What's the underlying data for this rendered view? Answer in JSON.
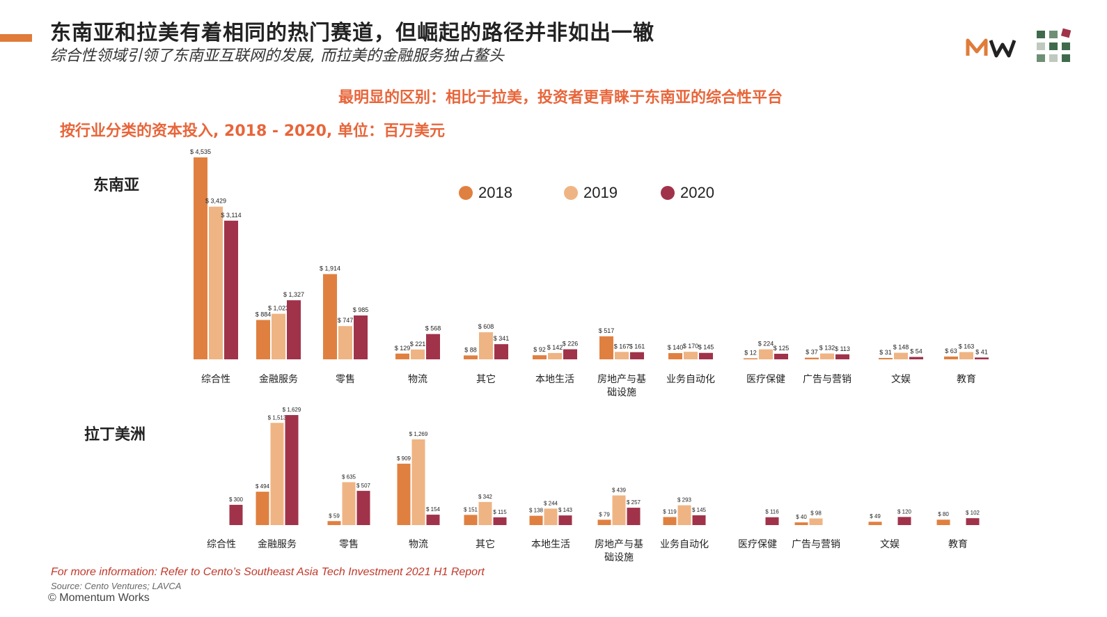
{
  "header": {
    "title": "东南亚和拉美有着相同的热门赛道，但崛起的路径并非如出一辙",
    "subtitle": "综合性领域引领了东南亚互联网的发展, 而拉美的金融服务独占鳌头",
    "headline": "最明显的区别：相比于拉美，投资者更青睐于东南亚的综合性平台"
  },
  "footer": {
    "note": "For more information: Refer to Cento’s Southeast Asia Tech Investment 2021 H1 Report",
    "source": "Source: Cento Ventures; LAVCA",
    "copyright": "© Momentum Works"
  },
  "colors": {
    "accent": "#e07b39",
    "c2018": "#e08040",
    "c2019": "#efb483",
    "c2020": "#a0334a",
    "headline": "#e8653a"
  },
  "chart_data": [
    {
      "type": "bar",
      "title": "按行业分类的资本投入, 2018 - 2020, 单位：百万美元",
      "region": "东南亚",
      "value_prefix": "$ ",
      "categories": [
        [
          "综合性"
        ],
        [
          "金融服务"
        ],
        [
          "零售"
        ],
        [
          "物流"
        ],
        [
          "其它"
        ],
        [
          "本地生活"
        ],
        [
          "房地产与基",
          "础设施"
        ],
        [
          "业务自动化"
        ],
        [
          "医疗保健"
        ],
        [
          "广告与营销"
        ],
        [
          "文娱"
        ],
        [
          "教育"
        ]
      ],
      "series": [
        {
          "name": "2018",
          "values": [
            4535,
            884,
            1914,
            129,
            88,
            92,
            517,
            140,
            12,
            37,
            31,
            63
          ]
        },
        {
          "name": "2019",
          "values": [
            3429,
            1023,
            747,
            221,
            608,
            142,
            167,
            170,
            224,
            132,
            148,
            163
          ]
        },
        {
          "name": "2020",
          "values": [
            3114,
            1327,
            985,
            568,
            341,
            226,
            161,
            145,
            125,
            113,
            54,
            41
          ]
        }
      ],
      "legend": [
        "2018",
        "2019",
        "2020"
      ],
      "legend_position": "top"
    },
    {
      "type": "bar",
      "region": "拉丁美洲",
      "value_prefix": "$ ",
      "categories": [
        [
          "综合性"
        ],
        [
          "金融服务"
        ],
        [
          "零售"
        ],
        [
          "物流"
        ],
        [
          "其它"
        ],
        [
          "本地生活"
        ],
        [
          "房地产与基",
          "础设施"
        ],
        [
          "业务自动化"
        ],
        [
          "医疗保健"
        ],
        [
          "广告与营销"
        ],
        [
          "文娱"
        ],
        [
          "教育"
        ]
      ],
      "series": [
        {
          "name": "2018",
          "values": [
            null,
            494,
            59,
            909,
            151,
            138,
            79,
            119,
            null,
            40,
            49,
            80
          ]
        },
        {
          "name": "2019",
          "values": [
            null,
            1513,
            635,
            1269,
            342,
            244,
            439,
            293,
            null,
            98,
            null,
            null
          ]
        },
        {
          "name": "2020",
          "values": [
            300,
            1629,
            507,
            154,
            115,
            143,
            257,
            145,
            116,
            null,
            120,
            102
          ]
        }
      ]
    }
  ]
}
